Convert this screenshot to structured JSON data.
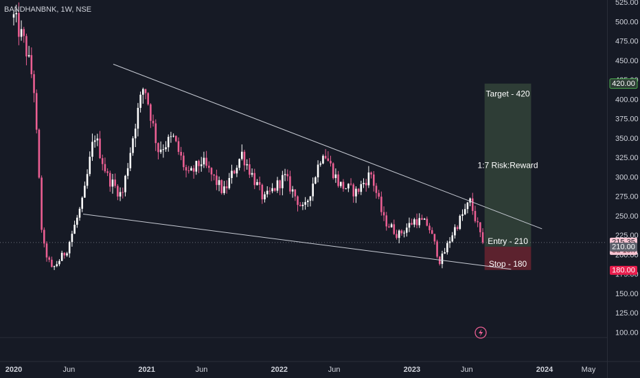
{
  "header": {
    "symbol_title": "BANDHANBNK, 1W, NSE"
  },
  "colors": {
    "background": "#161a25",
    "up_candle": "#ffffff",
    "down_candle": "#ec5f93",
    "target_zone": "#2e3d36",
    "stop_zone": "#5c222e",
    "trendline": "#c9cdd6",
    "target_tag": "#4caf50",
    "last_price_tag": "#f7c5d3",
    "entry_tag": "#5d606b",
    "stop_tag": "#e91e4d"
  },
  "chart_data": {
    "type": "candlestick",
    "symbol": "BANDHANBNK",
    "timeframe": "1W",
    "exchange": "NSE",
    "ylim": [
      85,
      530
    ],
    "y_ticks": [
      "525.00",
      "500.00",
      "475.00",
      "450.00",
      "425.00",
      "400.00",
      "375.00",
      "350.00",
      "325.00",
      "300.00",
      "275.00",
      "250.00",
      "225.00",
      "200.00",
      "175.00",
      "150.00",
      "125.00",
      "100.00"
    ],
    "x_ticks": [
      {
        "label": "2020",
        "date": "2020-01-01"
      },
      {
        "label": "Jun",
        "date": "2020-06-01"
      },
      {
        "label": "2021",
        "date": "2021-01-01"
      },
      {
        "label": "Jun",
        "date": "2021-06-01"
      },
      {
        "label": "2022",
        "date": "2022-01-01"
      },
      {
        "label": "Jun",
        "date": "2022-06-01"
      },
      {
        "label": "2023",
        "date": "2023-01-01"
      },
      {
        "label": "Jun",
        "date": "2023-06-01"
      },
      {
        "label": "2024",
        "date": "2024-01-01"
      },
      {
        "label": "May",
        "date": "2024-05-01"
      }
    ],
    "x_range": [
      "2020-01-01",
      "2024-05-01"
    ],
    "path_knots": [
      {
        "date": "2020-01-01",
        "close": 505
      },
      {
        "date": "2020-02-01",
        "close": 470
      },
      {
        "date": "2020-02-25",
        "close": 420
      },
      {
        "date": "2020-03-20",
        "close": 215
      },
      {
        "date": "2020-04-15",
        "close": 180
      },
      {
        "date": "2020-05-25",
        "close": 205
      },
      {
        "date": "2020-07-10",
        "close": 270
      },
      {
        "date": "2020-08-10",
        "close": 355
      },
      {
        "date": "2020-09-15",
        "close": 300
      },
      {
        "date": "2020-10-25",
        "close": 275
      },
      {
        "date": "2020-12-01",
        "close": 370
      },
      {
        "date": "2020-12-25",
        "close": 420
      },
      {
        "date": "2021-02-01",
        "close": 335
      },
      {
        "date": "2021-03-15",
        "close": 350
      },
      {
        "date": "2021-04-25",
        "close": 300
      },
      {
        "date": "2021-06-01",
        "close": 320
      },
      {
        "date": "2021-08-01",
        "close": 280
      },
      {
        "date": "2021-09-20",
        "close": 330
      },
      {
        "date": "2021-11-20",
        "close": 270
      },
      {
        "date": "2022-01-15",
        "close": 300
      },
      {
        "date": "2022-03-10",
        "close": 255
      },
      {
        "date": "2022-05-01",
        "close": 335
      },
      {
        "date": "2022-06-15",
        "close": 290
      },
      {
        "date": "2022-08-01",
        "close": 280
      },
      {
        "date": "2022-09-10",
        "close": 305
      },
      {
        "date": "2022-10-15",
        "close": 245
      },
      {
        "date": "2022-11-25",
        "close": 225
      },
      {
        "date": "2023-01-10",
        "close": 245
      },
      {
        "date": "2023-02-15",
        "close": 238
      },
      {
        "date": "2023-03-20",
        "close": 190
      },
      {
        "date": "2023-04-25",
        "close": 230
      },
      {
        "date": "2023-06-10",
        "close": 268
      },
      {
        "date": "2023-07-15",
        "close": 215
      }
    ],
    "candle_count": 186,
    "trendlines": [
      {
        "name": "upper",
        "start": {
          "date": "2020-10-01",
          "price": 445
        },
        "end": {
          "date": "2023-12-25",
          "price": 233
        }
      },
      {
        "name": "lower",
        "start": {
          "date": "2020-07-10",
          "price": 252
        },
        "end": {
          "date": "2023-10-01",
          "price": 181
        }
      }
    ],
    "position": {
      "start_date": "2023-07-20",
      "end_date": "2023-11-25",
      "target_price": 420,
      "entry_price": 210,
      "stop_price": 180,
      "target_label": "Target - 420",
      "ratio_label": "1:7 Risk:Reward",
      "entry_label": "Entry - 210",
      "stop_label": "Stop - 180"
    },
    "price_tags": {
      "target": "420.00",
      "last": "215.35",
      "countdown": "3d 19h",
      "entry": "210.00",
      "stop": "180.00"
    },
    "last_price": 215.35,
    "dotted_price_line": 215.35,
    "zero_line_price": 93
  }
}
